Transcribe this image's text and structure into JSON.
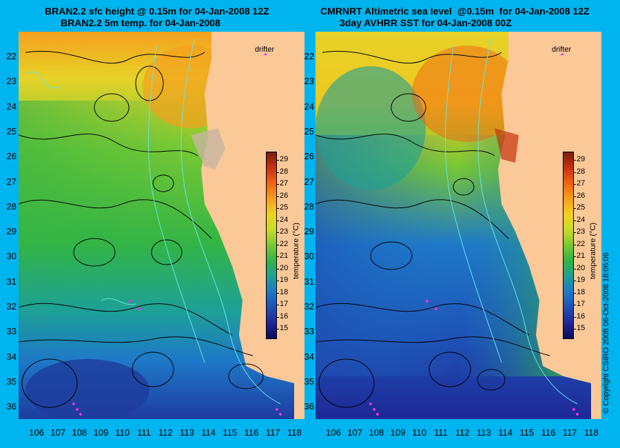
{
  "left_panel": {
    "title_line1": "BRAN2.2 sfc height @ 0.15m for 04-Jan-2008 12Z",
    "title_line2": "BRAN2.2 5m temp. for 04-Jan-2008",
    "drifter_label": "drifter"
  },
  "right_panel": {
    "title_line1": "CMRNRT Altimetric sea level  @0.15m  for 04-Jan-2008 12Z",
    "title_line2": "3day AVHRR SST for 04-Jan-2008 00Z",
    "drifter_label": "drifter"
  },
  "latitude_labels": [
    "22",
    "23",
    "24",
    "25",
    "26",
    "27",
    "28",
    "29",
    "30",
    "31",
    "32",
    "33",
    "34",
    "35",
    "36"
  ],
  "longitude_labels": [
    "106",
    "107",
    "108",
    "109",
    "110",
    "111",
    "112",
    "113",
    "114",
    "115",
    "116",
    "117",
    "118"
  ],
  "colorbar": {
    "ticks": [
      "29",
      "28",
      "27",
      "26",
      "25",
      "24",
      "23",
      "22",
      "21",
      "20",
      "19",
      "18",
      "17",
      "16",
      "15"
    ],
    "label": "temperature (°C)",
    "colors": [
      "#7a1d10",
      "#c8320f",
      "#f06414",
      "#f5a01e",
      "#f0d21e",
      "#c8dc28",
      "#78c832",
      "#32b446",
      "#1ea096",
      "#1e78c8",
      "#1e50b4",
      "#1e2896",
      "#0a0a5a"
    ]
  },
  "copyright": "© Copyright CSIRO 2008    06-Oct-2008 18:06:06",
  "colors": {
    "background": "#00b4f0",
    "land": "#fbc898",
    "contour": "#000000",
    "isobath": "#64e6e6",
    "drifter": "#e632e6"
  }
}
